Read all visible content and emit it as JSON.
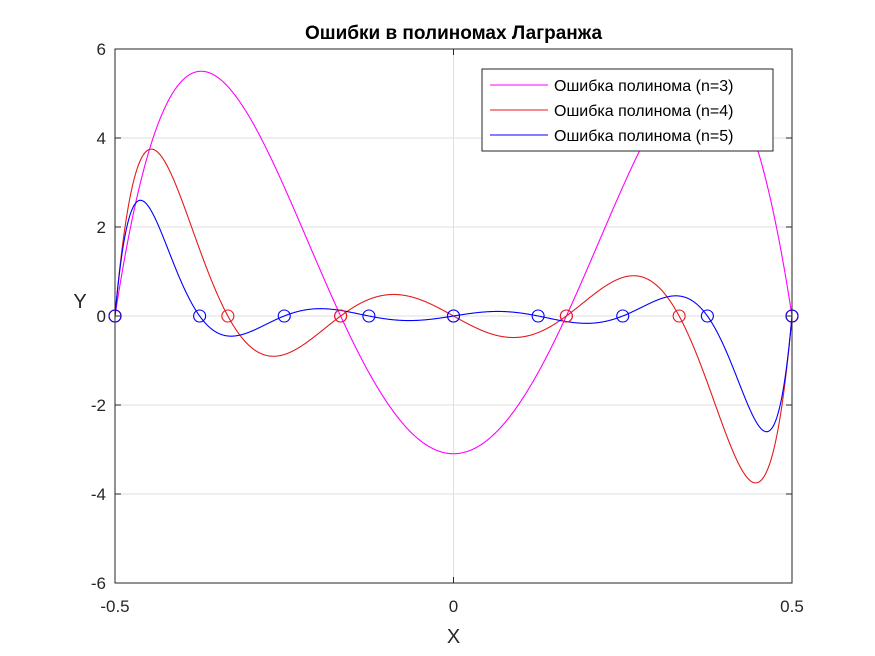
{
  "chart_data": {
    "type": "line",
    "title": "Ошибки в полиномах Лагранжа",
    "xlabel": "X",
    "ylabel": "Y",
    "xlim": [
      -0.5,
      0.5
    ],
    "ylim": [
      -6,
      6
    ],
    "xticks": [
      -0.5,
      0,
      0.5
    ],
    "xtick_labels": [
      "-0.5",
      "0",
      "0.5"
    ],
    "yticks": [
      -6,
      -4,
      -2,
      0,
      2,
      4,
      6
    ],
    "ytick_labels": [
      "-6",
      "-4",
      "-2",
      "0",
      "2",
      "4",
      "6"
    ],
    "grid": true,
    "legend_position": "top-right",
    "series": [
      {
        "name": "Ошибка полинома (n=3)",
        "color": "#ff00ff",
        "n": 3,
        "peak_value": 5.5,
        "nodes_x": [
          -0.5,
          -0.1667,
          0.1667,
          0.5
        ],
        "nodes_y": [
          0,
          0,
          0,
          0
        ]
      },
      {
        "name": "Ошибка полинома (n=4)",
        "color": "#e41a1c",
        "n": 4,
        "peak_value": 3.75,
        "nodes_x": [
          -0.5,
          -0.3333,
          -0.1667,
          0,
          0.1667,
          0.3333,
          0.5
        ],
        "nodes_y": [
          0,
          0,
          0,
          0,
          0,
          0,
          0
        ]
      },
      {
        "name": "Ошибка полинома (n=5)",
        "color": "#0000ff",
        "n": 5,
        "peak_value": 2.6,
        "nodes_x": [
          -0.5,
          -0.375,
          -0.25,
          -0.125,
          0,
          0.125,
          0.25,
          0.375,
          0.5
        ],
        "nodes_y": [
          0,
          0,
          0,
          0,
          0,
          0,
          0,
          0,
          0
        ]
      }
    ]
  }
}
